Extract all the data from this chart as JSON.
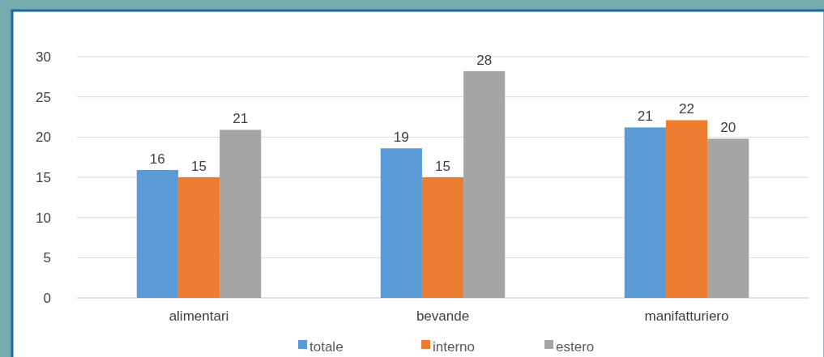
{
  "chart_data": {
    "type": "bar",
    "categories": [
      "alimentari",
      "bevande",
      "manifatturiero"
    ],
    "series": [
      {
        "name": "totale",
        "color": "#5b9bd5",
        "values": [
          15.9,
          18.6,
          21.2
        ],
        "value_labels": [
          "16",
          "19",
          "21"
        ]
      },
      {
        "name": "interno",
        "color": "#ed7d31",
        "values": [
          15,
          15,
          22.1
        ],
        "value_labels": [
          "15",
          "15",
          "22"
        ]
      },
      {
        "name": "estero",
        "color": "#a5a5a5",
        "values": [
          20.9,
          28.2,
          19.8
        ],
        "value_labels": [
          "21",
          "28",
          "20"
        ]
      }
    ],
    "ylim": [
      0,
      30
    ],
    "yticks": [
      0,
      5,
      10,
      15,
      20,
      25,
      30
    ],
    "grid": "y",
    "legend": "bottom"
  }
}
